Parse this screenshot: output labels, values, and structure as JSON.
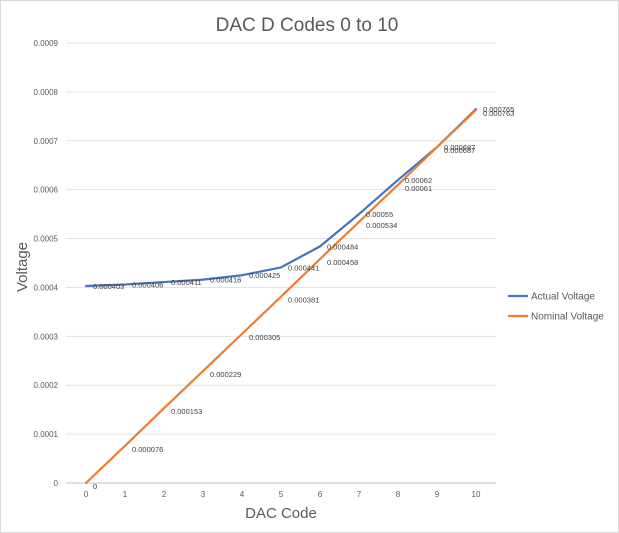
{
  "chart_data": {
    "type": "line",
    "title": "DAC D Codes 0 to 10",
    "xlabel": "DAC Code",
    "ylabel": "Voltage",
    "x": [
      0,
      1,
      2,
      3,
      4,
      5,
      6,
      7,
      8,
      9,
      10
    ],
    "ylim": [
      0,
      0.0009
    ],
    "yticks": [
      "0",
      "0.0001",
      "0.0002",
      "0.0003",
      "0.0004",
      "0.0005",
      "0.0006",
      "0.0007",
      "0.0008",
      "0.0009"
    ],
    "xticks": [
      "0",
      "1",
      "2",
      "3",
      "4",
      "5",
      "6",
      "7",
      "8",
      "9",
      "10"
    ],
    "grid": true,
    "legend_position": "right",
    "series": [
      {
        "name": "Actual Voltage",
        "color": "#4472c4",
        "values": [
          0.000403,
          0.000406,
          0.000411,
          0.000416,
          0.000425,
          0.000441,
          0.000484,
          0.00055,
          0.00062,
          0.000687,
          0.000765
        ],
        "labels": [
          "0.000403",
          "0.000406",
          "0.000411",
          "0.000416",
          "0.000425",
          "0.000441",
          "0.000484",
          "0.00055",
          "0.00062",
          "0.000687",
          "0.000765"
        ]
      },
      {
        "name": "Nominal Voltage",
        "color": "#ed7d31",
        "values": [
          0,
          7.6e-05,
          0.000153,
          0.000229,
          0.000305,
          0.000381,
          0.000458,
          0.000534,
          0.00061,
          0.000687,
          0.000763
        ],
        "labels": [
          "0",
          "0.000076",
          "0.000153",
          "0.000229",
          "0.000305",
          "0.000381",
          "0.000458",
          "0.000534",
          "0.00061",
          "0.000687",
          "0.000763"
        ]
      }
    ]
  }
}
